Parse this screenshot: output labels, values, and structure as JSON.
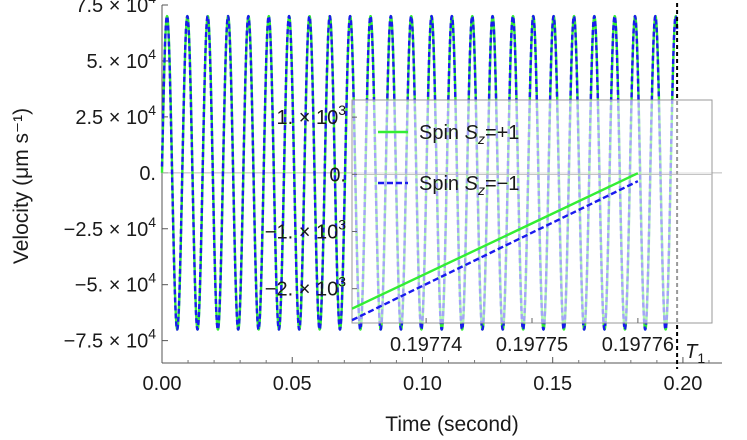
{
  "chart_data": [
    {
      "type": "line",
      "title": "",
      "xlabel": "Time (second)",
      "ylabel": "Velocity (μm s⁻¹)",
      "xlim": [
        0,
        0.215
      ],
      "ylim": [
        -85000,
        75000
      ],
      "x_ticks": [
        {
          "value": 0.0,
          "label": "0.00"
        },
        {
          "value": 0.05,
          "label": "0.05"
        },
        {
          "value": 0.1,
          "label": "0.10"
        },
        {
          "value": 0.15,
          "label": "0.15"
        },
        {
          "value": 0.2,
          "label": "0.20"
        }
      ],
      "y_ticks": [
        {
          "value": 75000,
          "mant": "7.5",
          "exp": "4"
        },
        {
          "value": 50000,
          "mant": "5.",
          "exp": "4"
        },
        {
          "value": 25000,
          "mant": "2.5",
          "exp": "4"
        },
        {
          "value": 0,
          "mant": "0.",
          "exp": ""
        },
        {
          "value": -25000,
          "mant": "−2.5",
          "exp": "4"
        },
        {
          "value": -50000,
          "mant": "−5.",
          "exp": "4"
        },
        {
          "value": -75000,
          "mant": "−7.5",
          "exp": "4"
        }
      ],
      "series": [
        {
          "spin": "+1",
          "color": "#33ee33",
          "style": "solid",
          "amplitude": 70000,
          "frequency_hz": 128,
          "phase": 0.0
        },
        {
          "spin": "-1",
          "color": "#1a1aee",
          "style": "dashed",
          "amplitude": 70000,
          "frequency_hz": 128,
          "phase": 0.04
        }
      ],
      "vertical_line": {
        "x": 0.19776,
        "label": "T",
        "subscript": "1",
        "style": "dashed",
        "color": "#000000"
      },
      "grid": false
    },
    {
      "type": "line",
      "inset": true,
      "title": "",
      "xlim": [
        0.197733,
        0.197767
      ],
      "ylim": [
        -2600,
        1300
      ],
      "x_ticks": [
        {
          "value": 0.19774,
          "label": "0.19774"
        },
        {
          "value": 0.19775,
          "label": "0.19775"
        },
        {
          "value": 0.19776,
          "label": "0.19776"
        }
      ],
      "y_ticks": [
        {
          "value": 1000,
          "mant": "1.",
          "exp": "3"
        },
        {
          "value": 0,
          "mant": "0.",
          "exp": ""
        },
        {
          "value": -1000,
          "mant": "−1.",
          "exp": "3"
        },
        {
          "value": -2000,
          "mant": "−2.",
          "exp": "3"
        }
      ],
      "series": [
        {
          "name_plain": "Spin ",
          "name_sym": "S",
          "name_sub": "z",
          "name_val": "=+1",
          "color": "#33ee33",
          "style": "solid",
          "x": [
            0.197733,
            0.19776
          ],
          "y": [
            -2350,
            20
          ]
        },
        {
          "name_plain": "Spin ",
          "name_sym": "S",
          "name_sub": "z",
          "name_val": "=−1",
          "color": "#1a1aee",
          "style": "dashed",
          "x": [
            0.197733,
            0.19776
          ],
          "y": [
            -2550,
            -120
          ]
        }
      ],
      "legend_position": "top-left",
      "grid": false
    }
  ]
}
